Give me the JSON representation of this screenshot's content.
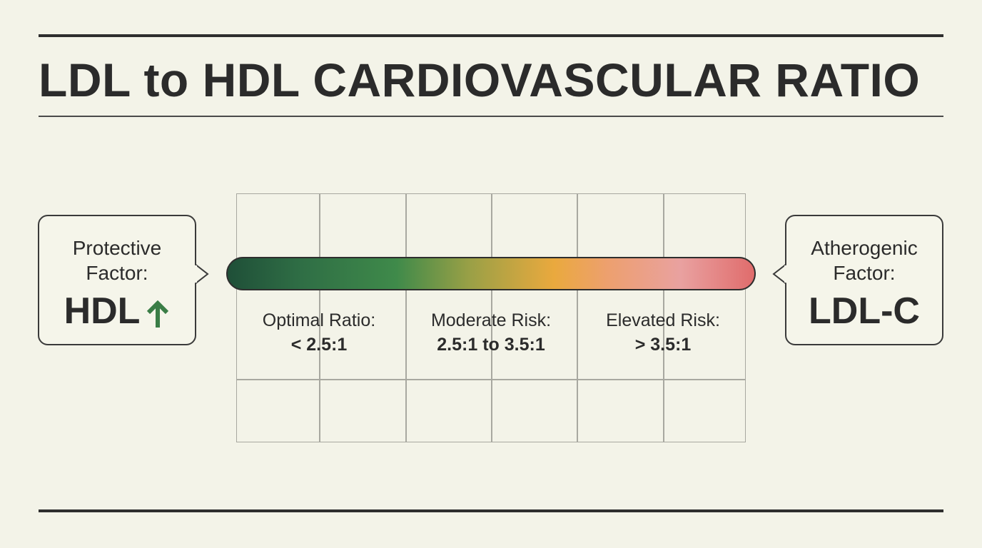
{
  "title": "LDL to HDL CARDIOVASCULAR RATIO",
  "left_callout": {
    "label_line1": "Protective",
    "label_line2": "Factor:",
    "value": "HDL",
    "icon": "up-arrow-icon",
    "icon_color": "#3a7d46"
  },
  "right_callout": {
    "label_line1": "Atherogenic",
    "label_line2": "Factor:",
    "value": "LDL-C"
  },
  "zones": [
    {
      "name": "Optimal Ratio:",
      "range": "< 2.5:1"
    },
    {
      "name": "Moderate Risk:",
      "range": "2.5:1 to 3.5:1"
    },
    {
      "name": "Elevated Risk:",
      "range": "> 3.5:1"
    }
  ],
  "scale_colors": {
    "optimal": "#2f6e45",
    "moderate": "#eaa93e",
    "elevated": "#e06c6c"
  }
}
